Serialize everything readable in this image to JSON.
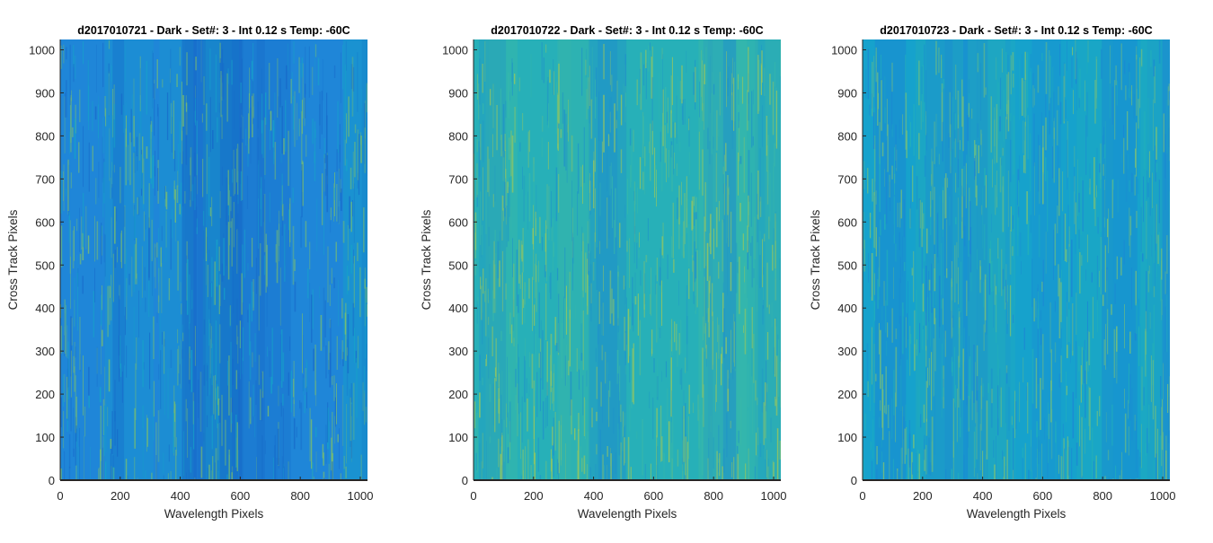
{
  "chart_data": [
    {
      "type": "heatmap",
      "title": "d2017010721 - Dark - Set#: 3 - Int 0.12 s Temp: -60C",
      "xlabel": "Wavelength Pixels",
      "ylabel": "Cross Track Pixels",
      "xlim": [
        0,
        1024
      ],
      "ylim": [
        0,
        1024
      ],
      "xticks": [
        0,
        200,
        400,
        600,
        800,
        1000
      ],
      "yticks": [
        0,
        100,
        200,
        300,
        400,
        500,
        600,
        700,
        800,
        900,
        1000
      ],
      "colors": {
        "base": "#1f86d8",
        "dark": "#1769c9",
        "bright": "#7dc06a",
        "mid": "#16a3c8"
      },
      "seed": 21
    },
    {
      "type": "heatmap",
      "title": "d2017010722 - Dark - Set#: 3 - Int 0.12 s Temp: -60C",
      "xlabel": "Wavelength Pixels",
      "ylabel": "Cross Track Pixels",
      "xlim": [
        0,
        1024
      ],
      "ylim": [
        0,
        1024
      ],
      "xticks": [
        0,
        200,
        400,
        600,
        800,
        1000
      ],
      "yticks": [
        0,
        100,
        200,
        300,
        400,
        500,
        600,
        700,
        800,
        900,
        1000
      ],
      "colors": {
        "base": "#27b0b8",
        "dark": "#1f92c9",
        "bright": "#9cc85a",
        "mid": "#3ab8a8"
      },
      "seed": 22
    },
    {
      "type": "heatmap",
      "title": "d2017010723 - Dark - Set#: 3 - Int 0.12 s Temp: -60C",
      "xlabel": "Wavelength Pixels",
      "ylabel": "Cross Track Pixels",
      "xlim": [
        0,
        1024
      ],
      "ylim": [
        0,
        1024
      ],
      "xticks": [
        0,
        200,
        400,
        600,
        800,
        1000
      ],
      "yticks": [
        0,
        100,
        200,
        300,
        400,
        500,
        600,
        700,
        800,
        900,
        1000
      ],
      "colors": {
        "base": "#16a2cc",
        "dark": "#1b86d4",
        "bright": "#82c470",
        "mid": "#23b0b8"
      },
      "seed": 23
    }
  ]
}
